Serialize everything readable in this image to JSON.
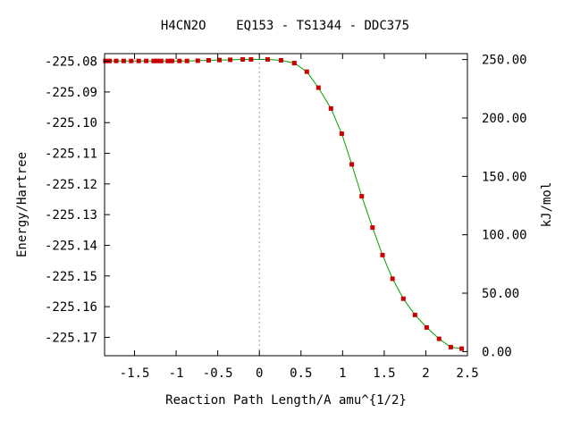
{
  "chart_data": {
    "type": "line",
    "title": "H4CN2O    EQ153 - TS1344 - DDC375",
    "xlabel": "Reaction Path Length/A amu^{1/2}",
    "ylabel": "Energy/Hartree",
    "y2label": "kJ/mol",
    "xlim": [
      -1.86,
      2.5
    ],
    "ylim": [
      -225.176,
      -225.0775
    ],
    "x_ticks": [
      {
        "v": -1.5,
        "label": "-1.5"
      },
      {
        "v": -1,
        "label": "-1"
      },
      {
        "v": -0.5,
        "label": "-0.5"
      },
      {
        "v": 0,
        "label": "0"
      },
      {
        "v": 0.5,
        "label": "0.5"
      },
      {
        "v": 1,
        "label": "1"
      },
      {
        "v": 1.5,
        "label": "1.5"
      },
      {
        "v": 2,
        "label": "2"
      },
      {
        "v": 2.5,
        "label": "2.5"
      }
    ],
    "y_ticks": [
      {
        "v": -225.08,
        "label": "-225.08"
      },
      {
        "v": -225.09,
        "label": "-225.09"
      },
      {
        "v": -225.1,
        "label": "-225.10"
      },
      {
        "v": -225.11,
        "label": "-225.11"
      },
      {
        "v": -225.12,
        "label": "-225.12"
      },
      {
        "v": -225.13,
        "label": "-225.13"
      },
      {
        "v": -225.14,
        "label": "-225.14"
      },
      {
        "v": -225.15,
        "label": "-225.15"
      },
      {
        "v": -225.16,
        "label": "-225.16"
      },
      {
        "v": -225.17,
        "label": "-225.17"
      }
    ],
    "y2_ticks": [
      {
        "v": -225.17465,
        "label": "0.00"
      },
      {
        "v": -225.155607,
        "label": "50.00"
      },
      {
        "v": -225.136563,
        "label": "100.00"
      },
      {
        "v": -225.11752,
        "label": "150.00"
      },
      {
        "v": -225.098476,
        "label": "200.00"
      },
      {
        "v": -225.079433,
        "label": "250.00"
      }
    ],
    "ts_x": 0,
    "line_color": "#00a000",
    "marker_color": "#cc0000",
    "series": [
      {
        "x": [
          -1.85,
          -1.8,
          -1.72,
          -1.63,
          -1.54,
          -1.45,
          -1.36,
          -1.27,
          -1.23,
          -1.18,
          -1.1,
          -1.05,
          -0.96,
          -0.87,
          -0.74,
          -0.61,
          -0.48,
          -0.35,
          -0.2,
          -0.1,
          0.1,
          0.26,
          0.42,
          0.57,
          0.71,
          0.86,
          0.99,
          1.11,
          1.23,
          1.36,
          1.48,
          1.6,
          1.73,
          1.87,
          2.01,
          2.16,
          2.3,
          2.43
        ],
        "y": [
          -225.0799,
          -225.0799,
          -225.0799,
          -225.0799,
          -225.0799,
          -225.0799,
          -225.0799,
          -225.0799,
          -225.0799,
          -225.0799,
          -225.0799,
          -225.0799,
          -225.0799,
          -225.0799,
          -225.0798,
          -225.0797,
          -225.0796,
          -225.0795,
          -225.0794,
          -225.0794,
          -225.0794,
          -225.0797,
          -225.0806,
          -225.0834,
          -225.0886,
          -225.0954,
          -225.1036,
          -225.1136,
          -225.124,
          -225.1342,
          -225.1432,
          -225.1509,
          -225.1574,
          -225.1627,
          -225.1668,
          -225.1705,
          -225.1732,
          -225.1737
        ]
      }
    ]
  }
}
